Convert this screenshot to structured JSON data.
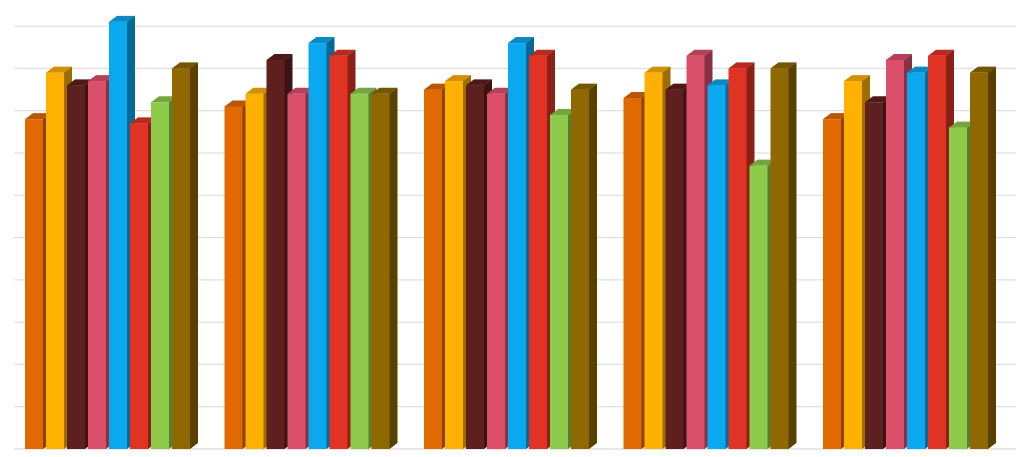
{
  "chart_data": {
    "type": "bar",
    "style": "3d-clustered-column",
    "title": "",
    "xlabel": "",
    "ylabel": "",
    "categories": [
      "",
      "",
      "",
      "",
      ""
    ],
    "ylim": [
      0,
      10.5
    ],
    "grid": true,
    "legend": "none",
    "series": [
      {
        "color": "#E06A00",
        "values": [
          7.8,
          8.1,
          8.5,
          8.3,
          7.8
        ]
      },
      {
        "color": "#FFB000",
        "values": [
          8.9,
          8.4,
          8.7,
          8.9,
          8.7
        ]
      },
      {
        "color": "#5E1F1F",
        "values": [
          8.6,
          9.2,
          8.6,
          8.5,
          8.2
        ]
      },
      {
        "color": "#DB4F6A",
        "values": [
          8.7,
          8.4,
          8.4,
          9.3,
          9.2
        ]
      },
      {
        "color": "#0AA8EE",
        "values": [
          10.1,
          9.6,
          9.6,
          8.6,
          8.9
        ]
      },
      {
        "color": "#E03324",
        "values": [
          7.7,
          9.3,
          9.3,
          9.0,
          9.3
        ]
      },
      {
        "color": "#8FCB4B",
        "values": [
          8.2,
          8.4,
          7.9,
          6.7,
          7.6
        ]
      },
      {
        "color": "#8F6800",
        "values": [
          9.0,
          8.4,
          8.5,
          9.0,
          8.9
        ]
      }
    ]
  }
}
